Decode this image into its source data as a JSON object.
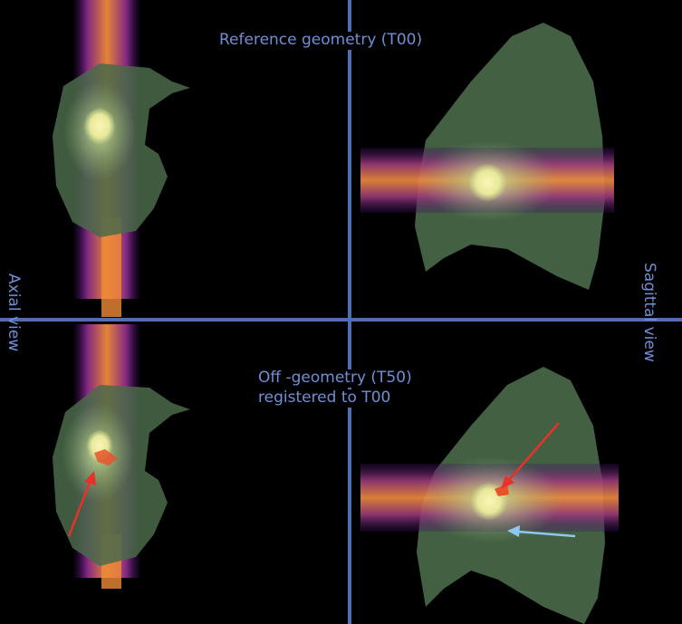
{
  "labels": {
    "top_center": "Reference geometry (T00)",
    "bottom_center_line1": "Off -geometry (T50)",
    "bottom_center_line2": "registered to T00",
    "left_vertical": "Axial view",
    "right_vertical": "Sagittal view"
  },
  "colors": {
    "background": "#000000",
    "divider": "#4f6fb0",
    "label_text": "#6f8fd6",
    "lung_mask": "#3f5a3f",
    "dose_high": "#f4f0a0",
    "dose_mid": "#f08a3a",
    "dose_low": "#7a2a8a",
    "arrow_red": "#e8312a",
    "arrow_blue": "#8ec8f0"
  },
  "annotations": [
    {
      "name": "red-arrow-axial",
      "color": "#e8312a"
    },
    {
      "name": "red-arrow-sagittal",
      "color": "#e8312a"
    },
    {
      "name": "blue-arrow-sagittal",
      "color": "#8ec8f0"
    }
  ]
}
